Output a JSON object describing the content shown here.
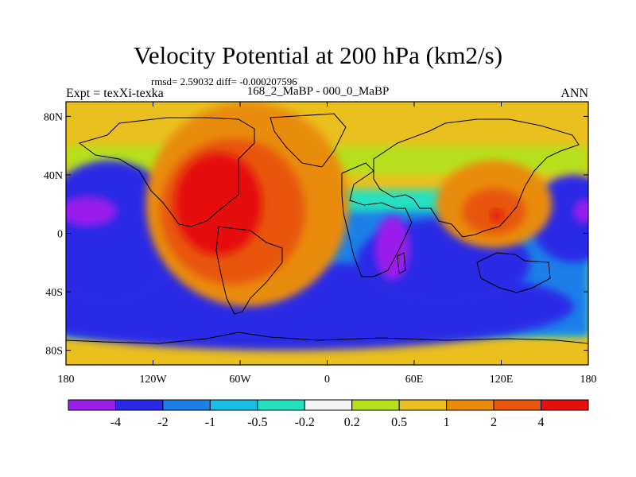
{
  "header": {
    "title": "Velocity Potential at 200 hPa (km2/s)",
    "stats": "rmsd= 2.59032 diff= -0.000207596",
    "experiment": "Expt = texXi-texka",
    "comparison": "168_2_MaBP - 000_0_MaBP",
    "season": "ANN"
  },
  "chart_data": {
    "type": "heatmap",
    "title": "Velocity Potential at 200 hPa (km2/s)",
    "xlabel": "",
    "ylabel": "",
    "xlim": [
      -180,
      180
    ],
    "ylim": [
      -90,
      90
    ],
    "x_ticks": [
      {
        "value": -180,
        "label": "180"
      },
      {
        "value": -120,
        "label": "120W"
      },
      {
        "value": -60,
        "label": "60W"
      },
      {
        "value": 0,
        "label": "0"
      },
      {
        "value": 60,
        "label": "60E"
      },
      {
        "value": 120,
        "label": "120E"
      },
      {
        "value": 180,
        "label": "180"
      }
    ],
    "y_ticks": [
      {
        "value": 80,
        "label": "80N"
      },
      {
        "value": 40,
        "label": "40N"
      },
      {
        "value": 0,
        "label": "0"
      },
      {
        "value": -40,
        "label": "40S"
      },
      {
        "value": -80,
        "label": "80S"
      }
    ],
    "colorbar": {
      "colors": [
        "#9b1fea",
        "#2a2ae6",
        "#1f7fe8",
        "#18bde8",
        "#25e0c0",
        "#f4f4f4",
        "#b7e01e",
        "#eac01e",
        "#e98c0a",
        "#e8560f",
        "#e51010"
      ],
      "level_labels": [
        "-4",
        "-2",
        "-1",
        "-0.5",
        "-0.2",
        "0.2",
        "0.5",
        "1",
        "2",
        "4"
      ]
    },
    "regions": [
      {
        "name": "negative-band-south",
        "level": 1,
        "cx": -30,
        "cy": -50,
        "rx": 200,
        "ry": 30
      },
      {
        "name": "negative-pacific-west",
        "level": 1,
        "cx": -150,
        "cy": 0,
        "rx": 50,
        "ry": 50
      },
      {
        "name": "negative-pacific-core",
        "level": 0,
        "cx": -165,
        "cy": 15,
        "rx": 20,
        "ry": 10
      },
      {
        "name": "negative-indian",
        "level": 1,
        "cx": 80,
        "cy": -20,
        "rx": 60,
        "ry": 30
      },
      {
        "name": "negative-africa-core",
        "level": 0,
        "cx": 45,
        "cy": -10,
        "rx": 12,
        "ry": 22
      },
      {
        "name": "negative-pacific-east",
        "level": 1,
        "cx": 170,
        "cy": 10,
        "rx": 30,
        "ry": 30
      },
      {
        "name": "negative-east-core",
        "level": 0,
        "cx": 178,
        "cy": 15,
        "rx": 8,
        "ry": 8
      },
      {
        "name": "positive-americas-outer",
        "level": 8,
        "cx": -55,
        "cy": 20,
        "rx": 70,
        "ry": 70
      },
      {
        "name": "positive-americas-mid",
        "level": 9,
        "cx": -65,
        "cy": 15,
        "rx": 50,
        "ry": 50
      },
      {
        "name": "positive-americas-core",
        "level": 10,
        "cx": -75,
        "cy": 20,
        "rx": 30,
        "ry": 35
      },
      {
        "name": "positive-asia-outer",
        "level": 8,
        "cx": 115,
        "cy": 20,
        "rx": 40,
        "ry": 30
      },
      {
        "name": "positive-asia-mid",
        "level": 9,
        "cx": 115,
        "cy": 15,
        "rx": 22,
        "ry": 16
      },
      {
        "name": "positive-asia-core",
        "level": 10,
        "cx": 117,
        "cy": 12,
        "rx": 4,
        "ry": 4
      }
    ]
  }
}
